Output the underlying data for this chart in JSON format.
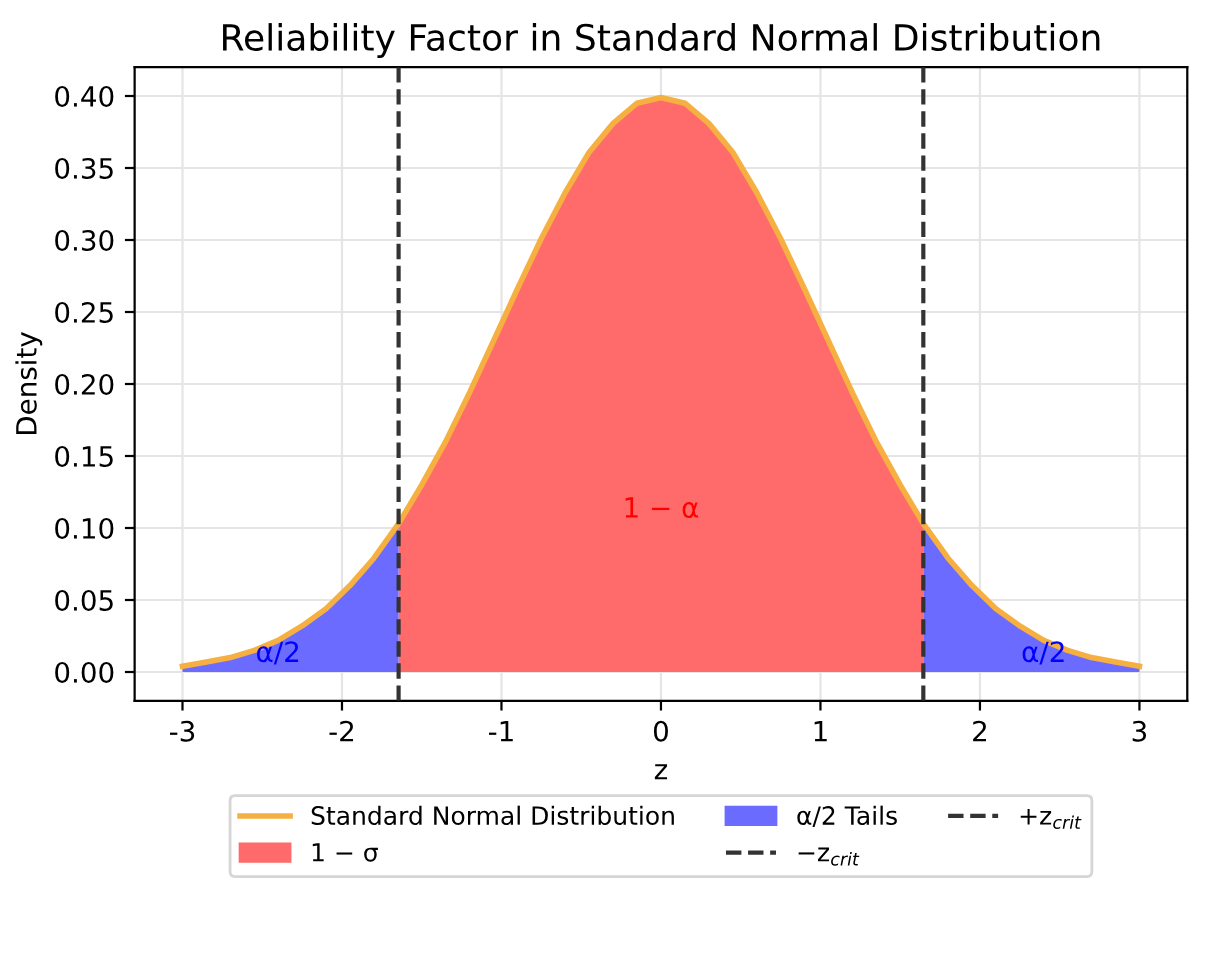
{
  "chart_data": {
    "type": "line",
    "title": "Reliability Factor in Standard Normal Distribution",
    "xlabel": "z",
    "ylabel": "Density",
    "series": [
      {
        "name": "Standard Normal Distribution",
        "color": "#f5b041",
        "x": [
          -3,
          -2.85,
          -2.7,
          -2.55,
          -2.4,
          -2.25,
          -2.1,
          -1.95,
          -1.8,
          -1.645,
          -1.5,
          -1.35,
          -1.2,
          -1.05,
          -0.9,
          -0.75,
          -0.6,
          -0.45,
          -0.3,
          -0.15,
          0,
          0.15,
          0.3,
          0.45,
          0.6,
          0.75,
          0.9,
          1.05,
          1.2,
          1.35,
          1.5,
          1.645,
          1.8,
          1.95,
          2.1,
          2.25,
          2.4,
          2.55,
          2.7,
          2.85,
          3
        ],
        "values": [
          0.004,
          0.007,
          0.01,
          0.015,
          0.022,
          0.032,
          0.044,
          0.06,
          0.079,
          0.103,
          0.13,
          0.16,
          0.194,
          0.23,
          0.266,
          0.301,
          0.333,
          0.361,
          0.381,
          0.395,
          0.399,
          0.395,
          0.381,
          0.361,
          0.333,
          0.301,
          0.266,
          0.23,
          0.194,
          0.16,
          0.13,
          0.103,
          0.079,
          0.06,
          0.044,
          0.032,
          0.022,
          0.015,
          0.01,
          0.007,
          0.004
        ]
      },
      {
        "name": "1 − σ",
        "type": "area",
        "color": "#ff6b6b",
        "x": [
          -1.645,
          -1.5,
          -1.35,
          -1.2,
          -1.05,
          -0.9,
          -0.75,
          -0.6,
          -0.45,
          -0.3,
          -0.15,
          0,
          0.15,
          0.3,
          0.45,
          0.6,
          0.75,
          0.9,
          1.05,
          1.2,
          1.35,
          1.5,
          1.645
        ],
        "values": [
          0.103,
          0.13,
          0.16,
          0.194,
          0.23,
          0.266,
          0.301,
          0.333,
          0.361,
          0.381,
          0.395,
          0.399,
          0.395,
          0.381,
          0.361,
          0.333,
          0.301,
          0.266,
          0.23,
          0.194,
          0.16,
          0.13,
          0.103
        ]
      },
      {
        "name": "α/2 Tails",
        "type": "area",
        "color": "#6b6bff",
        "x": [
          -3,
          -2.85,
          -2.7,
          -2.55,
          -2.4,
          -2.25,
          -2.1,
          -1.95,
          -1.8,
          -1.645,
          0,
          1.645,
          1.8,
          1.95,
          2.1,
          2.25,
          2.4,
          2.55,
          2.7,
          2.85,
          3
        ],
        "values": [
          0.004,
          0.007,
          0.01,
          0.015,
          0.022,
          0.032,
          0.044,
          0.06,
          0.079,
          0.103,
          null,
          0.103,
          0.079,
          0.06,
          0.044,
          0.032,
          0.022,
          0.015,
          0.01,
          0.007,
          0.004
        ]
      }
    ],
    "ref_lines": [
      {
        "axis": "x",
        "value": -1.645,
        "label": "−z$_{crit}$",
        "color": "#333333",
        "line_style": "dashed"
      },
      {
        "axis": "x",
        "value": 1.645,
        "label": "+z$_{crit}$",
        "color": "#333333",
        "line_style": "dashed"
      }
    ],
    "annotations": [
      "1 − α",
      {
        "text": "α/2",
        "x": -2.4,
        "y": 0.003
      },
      {
        "text": "α/2",
        "x": 2.4,
        "y": 0.003
      }
    ],
    "xlim": [
      -3.3,
      3.3
    ],
    "xticks": [
      -3,
      -2,
      -1,
      0,
      1,
      2,
      3
    ],
    "ylim": [
      -0.02,
      0.42
    ],
    "yticks": [
      {
        "value": 0,
        "label": "0.00"
      },
      {
        "value": 0.05,
        "label": "0.05"
      },
      {
        "value": 0.1,
        "label": "0.10"
      },
      {
        "value": 0.15,
        "label": "0.15"
      },
      {
        "value": 0.2,
        "label": "0.20"
      },
      {
        "value": 0.25,
        "label": "0.25"
      },
      {
        "value": 0.3,
        "label": "0.30"
      },
      {
        "value": 0.35,
        "label": "0.35"
      },
      {
        "value": 0.4,
        "label": "0.40"
      }
    ],
    "grid": true,
    "legend": "bottom"
  }
}
